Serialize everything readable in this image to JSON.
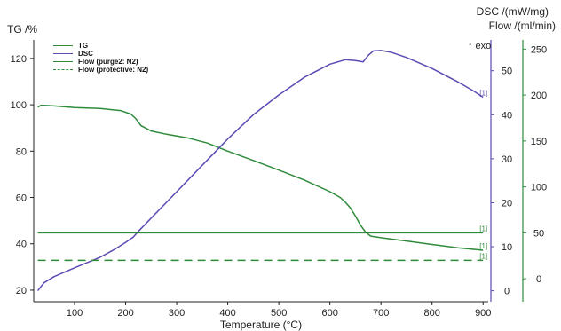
{
  "chart_data": {
    "type": "line",
    "xlabel": "Temperature (°C)",
    "xlim": [
      20,
      910
    ],
    "xticks": [
      100,
      200,
      300,
      400,
      500,
      600,
      700,
      800,
      900
    ],
    "axes": {
      "tg": {
        "label": "TG /%",
        "lim": [
          15,
          128
        ],
        "ticks": [
          20,
          40,
          60,
          80,
          100,
          120
        ],
        "color": "#222222"
      },
      "dsc": {
        "label": "DSC /(mW/mg)",
        "lim": [
          -2.5,
          57
        ],
        "ticks": [
          0,
          10,
          20,
          30,
          40,
          50
        ],
        "color": "#5b4bb3"
      },
      "flow": {
        "label": "Flow /(ml/min)",
        "lim": [
          -25,
          260
        ],
        "ticks": [
          0,
          50,
          100,
          150,
          200,
          250
        ],
        "color": "#2e8b3a"
      }
    },
    "exo_label": "↑ exo",
    "series": [
      {
        "name": "TG",
        "axis": "tg",
        "color": "#2e8b3a",
        "dash": false,
        "end_marker": "[1]",
        "x": [
          28,
          35,
          60,
          100,
          150,
          190,
          210,
          220,
          230,
          250,
          280,
          320,
          360,
          400,
          450,
          500,
          550,
          600,
          620,
          630,
          640,
          650,
          660,
          670,
          680,
          700,
          750,
          800,
          850,
          900
        ],
        "y": [
          99,
          99.8,
          99.5,
          98.8,
          98.4,
          97.5,
          96,
          94,
          91,
          88.7,
          87.3,
          85.8,
          83.5,
          80,
          76,
          71.8,
          67.5,
          62.5,
          60,
          58,
          55.5,
          52,
          48,
          45,
          43.3,
          42.6,
          41.2,
          39.7,
          38.3,
          37.2
        ]
      },
      {
        "name": "DSC",
        "axis": "dsc",
        "color": "#5b4bb3",
        "dash": false,
        "end_marker": "[1]",
        "x": [
          28,
          40,
          60,
          100,
          150,
          180,
          200,
          215,
          225,
          250,
          300,
          350,
          400,
          450,
          500,
          550,
          600,
          630,
          650,
          665,
          675,
          685,
          700,
          720,
          750,
          800,
          850,
          880,
          900
        ],
        "y": [
          0,
          1.8,
          3.2,
          5.2,
          7.6,
          9.5,
          11,
          12.2,
          13.5,
          16.5,
          22.5,
          28.5,
          34.5,
          40,
          44.5,
          48.5,
          51.5,
          52.5,
          52.3,
          52.0,
          53.5,
          54.5,
          54.6,
          54.2,
          53,
          50.5,
          47.5,
          45.5,
          44
        ]
      },
      {
        "name": "Flow (purge2: N2)",
        "axis": "flow",
        "color": "#2e8b3a",
        "dash": false,
        "end_marker": "[1]",
        "x": [
          28,
          900
        ],
        "y": [
          50,
          50
        ]
      },
      {
        "name": "Flow (protective: N2)",
        "axis": "flow",
        "color": "#2e8b3a",
        "dash": true,
        "end_marker": "[1]",
        "x": [
          28,
          900
        ],
        "y": [
          20,
          20
        ]
      }
    ]
  }
}
